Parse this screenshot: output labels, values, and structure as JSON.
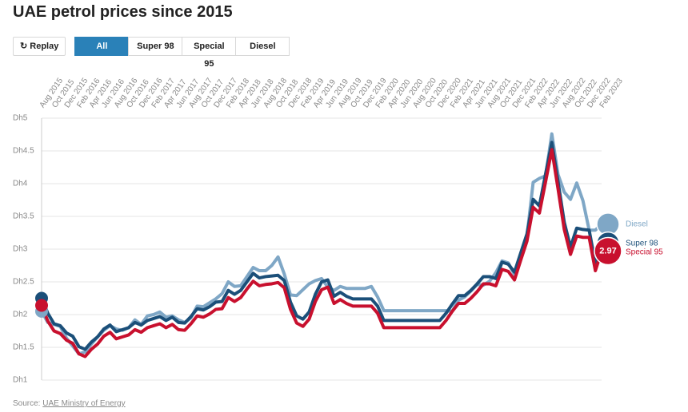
{
  "chart_data": {
    "type": "line",
    "title": "UAE petrol prices since 2015",
    "controls": {
      "replay": "Replay",
      "filters": [
        "All",
        "Super 98",
        "Special 95",
        "Diesel"
      ],
      "active": 0
    },
    "source": {
      "label": "Source:",
      "text": "UAE Ministry of Energy"
    },
    "categories": [
      "Aug 2015",
      null,
      "Oct 2015",
      null,
      "Dec 2015",
      null,
      "Feb 2016",
      null,
      "Apr 2016",
      null,
      "Jun 2016",
      null,
      "Aug 2016",
      null,
      "Oct 2016",
      null,
      "Dec 2016",
      null,
      "Feb 2017",
      null,
      "Apr 2017",
      null,
      "Jun 2017",
      null,
      "Aug 2017",
      null,
      "Oct 2017",
      null,
      "Dec 2017",
      null,
      "Feb 2018",
      null,
      "Apr 2018",
      null,
      "Jun 2018",
      null,
      "Aug 2018",
      null,
      "Oct 2018",
      null,
      "Dec 2018",
      null,
      "Feb 2019",
      null,
      "Apr 2019",
      null,
      "Jun 2019",
      null,
      "Aug 2019",
      null,
      "Oct 2019",
      null,
      "Dec 2019",
      null,
      "Feb 2020",
      null,
      "Apr 2020",
      null,
      "Jun 2020",
      null,
      "Aug 2020",
      null,
      "Oct 2020",
      null,
      "Dec 2020",
      null,
      "Feb 2021",
      null,
      "Apr 2021",
      null,
      "Jun 2021",
      null,
      "Aug 2021",
      null,
      "Oct 2021",
      null,
      "Dec 2021",
      null,
      "Feb 2022",
      null,
      "Apr 2022",
      null,
      "Jun 2022",
      null,
      "Aug 2022",
      null,
      "Oct 2022",
      null,
      "Dec 2022",
      null,
      "Feb 2023"
    ],
    "series": [
      {
        "name": "Diesel",
        "color": "#7fa7c6",
        "values": [
          2.05,
          1.88,
          1.85,
          1.82,
          1.64,
          1.52,
          1.4,
          1.43,
          1.55,
          1.66,
          1.76,
          1.83,
          1.78,
          1.76,
          1.8,
          1.92,
          1.85,
          1.98,
          2.0,
          2.04,
          1.96,
          1.98,
          1.92,
          1.88,
          1.95,
          2.13,
          2.12,
          2.18,
          2.24,
          2.32,
          2.5,
          2.43,
          2.44,
          2.58,
          2.72,
          2.67,
          2.67,
          2.75,
          2.88,
          2.62,
          2.3,
          2.29,
          2.38,
          2.47,
          2.52,
          2.55,
          2.42,
          2.37,
          2.43,
          2.4,
          2.4,
          2.4,
          2.4,
          2.43,
          2.27,
          2.06,
          2.06,
          2.06,
          2.06,
          2.06,
          2.06,
          2.06,
          2.06,
          2.06,
          2.06,
          2.06,
          2.05,
          2.22,
          2.27,
          2.36,
          2.46,
          2.45,
          2.51,
          2.64,
          2.82,
          2.79,
          2.61,
          2.88,
          3.19,
          4.02,
          4.08,
          4.12,
          4.76,
          4.14,
          3.87,
          3.76,
          4.01,
          3.74,
          3.29,
          3.29,
          3.38
        ]
      },
      {
        "name": "Super 98",
        "color": "#1b4f79",
        "values": [
          2.25,
          2.02,
          1.86,
          1.83,
          1.72,
          1.67,
          1.51,
          1.47,
          1.58,
          1.66,
          1.78,
          1.84,
          1.74,
          1.77,
          1.8,
          1.88,
          1.84,
          1.91,
          1.94,
          1.97,
          1.91,
          1.96,
          1.88,
          1.87,
          1.97,
          2.09,
          2.07,
          2.12,
          2.19,
          2.2,
          2.37,
          2.31,
          2.37,
          2.5,
          2.63,
          2.56,
          2.58,
          2.59,
          2.6,
          2.52,
          2.19,
          1.98,
          1.93,
          2.04,
          2.31,
          2.5,
          2.53,
          2.28,
          2.34,
          2.28,
          2.24,
          2.24,
          2.24,
          2.24,
          2.13,
          1.91,
          1.91,
          1.91,
          1.91,
          1.91,
          1.91,
          1.91,
          1.91,
          1.91,
          1.91,
          2.02,
          2.16,
          2.29,
          2.29,
          2.37,
          2.47,
          2.58,
          2.58,
          2.55,
          2.8,
          2.77,
          2.65,
          2.94,
          3.23,
          3.76,
          3.66,
          4.15,
          4.63,
          4.03,
          3.41,
          3.03,
          3.32,
          3.3,
          3.29,
          2.78,
          3.09
        ]
      },
      {
        "name": "Special 95",
        "color": "#c8102e",
        "values": [
          2.14,
          1.9,
          1.75,
          1.71,
          1.61,
          1.56,
          1.4,
          1.36,
          1.47,
          1.55,
          1.67,
          1.73,
          1.63,
          1.66,
          1.69,
          1.77,
          1.73,
          1.8,
          1.83,
          1.86,
          1.8,
          1.85,
          1.77,
          1.76,
          1.86,
          1.98,
          1.96,
          2.01,
          2.08,
          2.09,
          2.26,
          2.2,
          2.26,
          2.39,
          2.51,
          2.44,
          2.46,
          2.47,
          2.49,
          2.41,
          2.08,
          1.87,
          1.82,
          1.93,
          2.2,
          2.38,
          2.42,
          2.17,
          2.23,
          2.17,
          2.13,
          2.13,
          2.13,
          2.13,
          2.02,
          1.8,
          1.8,
          1.8,
          1.8,
          1.8,
          1.8,
          1.8,
          1.8,
          1.8,
          1.8,
          1.91,
          2.05,
          2.17,
          2.17,
          2.25,
          2.35,
          2.47,
          2.47,
          2.44,
          2.69,
          2.66,
          2.53,
          2.83,
          3.12,
          3.64,
          3.55,
          4.03,
          4.52,
          3.92,
          3.3,
          2.92,
          3.2,
          3.18,
          3.18,
          2.67,
          2.97
        ]
      }
    ],
    "ylim": [
      1,
      5
    ],
    "yticks": [
      {
        "value": 1,
        "label": "Dh1"
      },
      {
        "value": 1.5,
        "label": "Dh1.5"
      },
      {
        "value": 2,
        "label": "Dh2"
      },
      {
        "value": 2.5,
        "label": "Dh2.5"
      },
      {
        "value": 3,
        "label": "Dh3"
      },
      {
        "value": 3.5,
        "label": "Dh3.5"
      },
      {
        "value": 4,
        "label": "Dh4"
      },
      {
        "value": 4.5,
        "label": "Dh4.5"
      },
      {
        "value": 5,
        "label": "Dh5"
      }
    ],
    "grid": true
  }
}
